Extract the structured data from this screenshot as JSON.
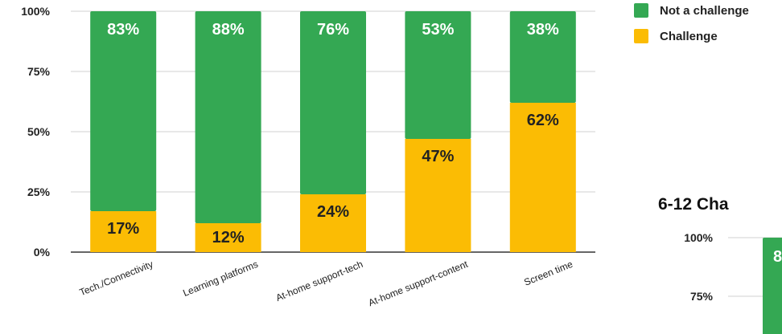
{
  "legend": {
    "items": [
      {
        "label": "Not a challenge",
        "color": "#34A853"
      },
      {
        "label": "Challenge",
        "color": "#FBBC04"
      }
    ]
  },
  "chart_data": [
    {
      "type": "bar",
      "stacked": true,
      "categories": [
        "Tech./Connectivity",
        "Learning platforms",
        "At-home support-tech",
        "At-home support-content",
        "Screen time"
      ],
      "series": [
        {
          "name": "Challenge",
          "color": "#FBBC04",
          "values": [
            17,
            12,
            24,
            47,
            62
          ],
          "labels": [
            "17%",
            "12%",
            "24%",
            "47%",
            "62%"
          ]
        },
        {
          "name": "Not a challenge",
          "color": "#34A853",
          "values": [
            83,
            88,
            76,
            53,
            38
          ],
          "labels": [
            "83%",
            "88%",
            "76%",
            "53%",
            "38%"
          ]
        }
      ],
      "ylim": [
        0,
        100
      ],
      "yticks": [
        "0%",
        "25%",
        "50%",
        "75%",
        "100%"
      ],
      "grid": true,
      "legend": "top-right"
    },
    {
      "type": "bar",
      "stacked": true,
      "title": "6-12 Cha",
      "yticks": [
        "75%",
        "100%"
      ],
      "first_bar_label_partial": "8",
      "note": "partially visible, cropped at right edge"
    }
  ]
}
